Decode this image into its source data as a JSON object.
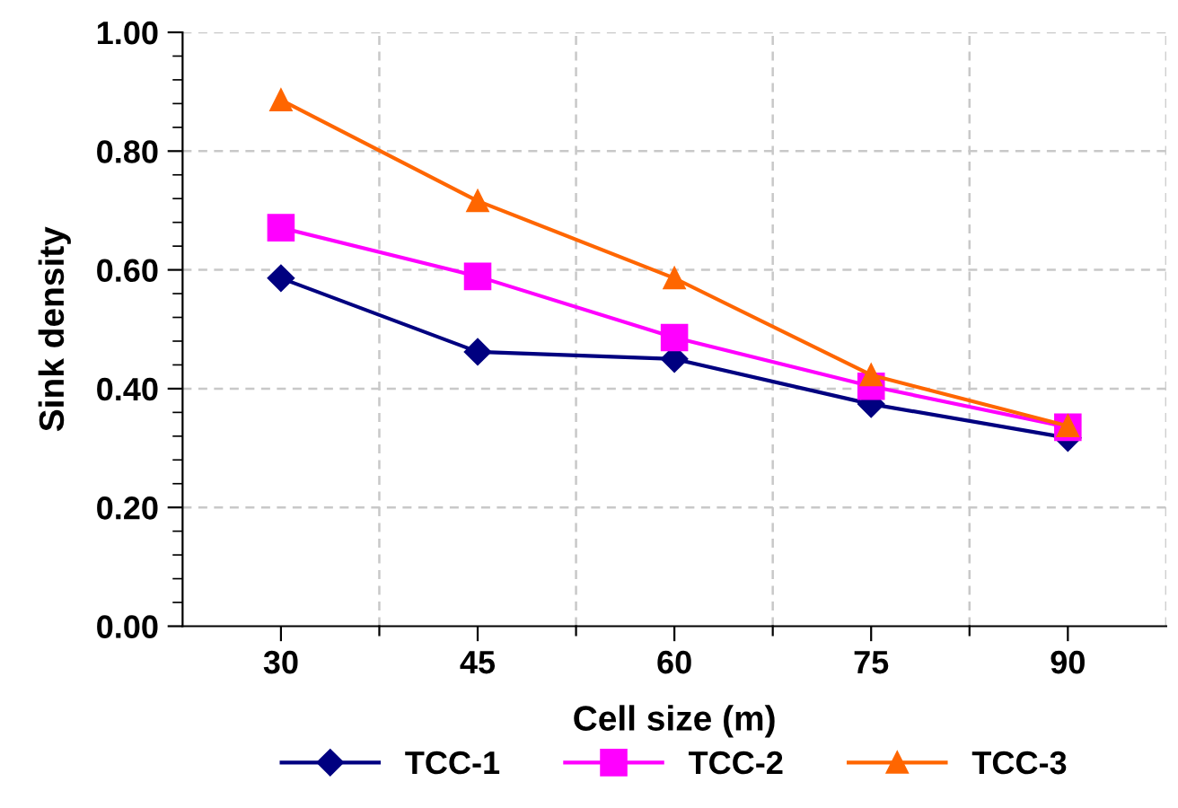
{
  "chart_data": {
    "type": "line",
    "xlabel": "Cell size (m)",
    "ylabel": "Sink density",
    "categories": [
      "30",
      "45",
      "60",
      "75",
      "90"
    ],
    "series": [
      {
        "name": "TCC-1",
        "color": "#000080",
        "marker": "diamond",
        "values": [
          0.586,
          0.462,
          0.45,
          0.374,
          0.317
        ]
      },
      {
        "name": "TCC-2",
        "color": "#ff00ff",
        "marker": "square",
        "values": [
          0.671,
          0.589,
          0.486,
          0.404,
          0.335
        ]
      },
      {
        "name": "TCC-3",
        "color": "#ff6600",
        "marker": "triangle",
        "values": [
          0.886,
          0.716,
          0.586,
          0.423,
          0.337
        ]
      }
    ],
    "ylim": [
      0,
      1
    ],
    "yticks": [
      {
        "value": 0,
        "label": "0.00"
      },
      {
        "value": 0.2,
        "label": "0.20"
      },
      {
        "value": 0.4,
        "label": "0.40"
      },
      {
        "value": 0.6,
        "label": "0.60"
      },
      {
        "value": 0.8,
        "label": "0.80"
      },
      {
        "value": 1,
        "label": "1.00"
      }
    ],
    "grid": true,
    "legend": "bottom",
    "line_style": "solid"
  }
}
